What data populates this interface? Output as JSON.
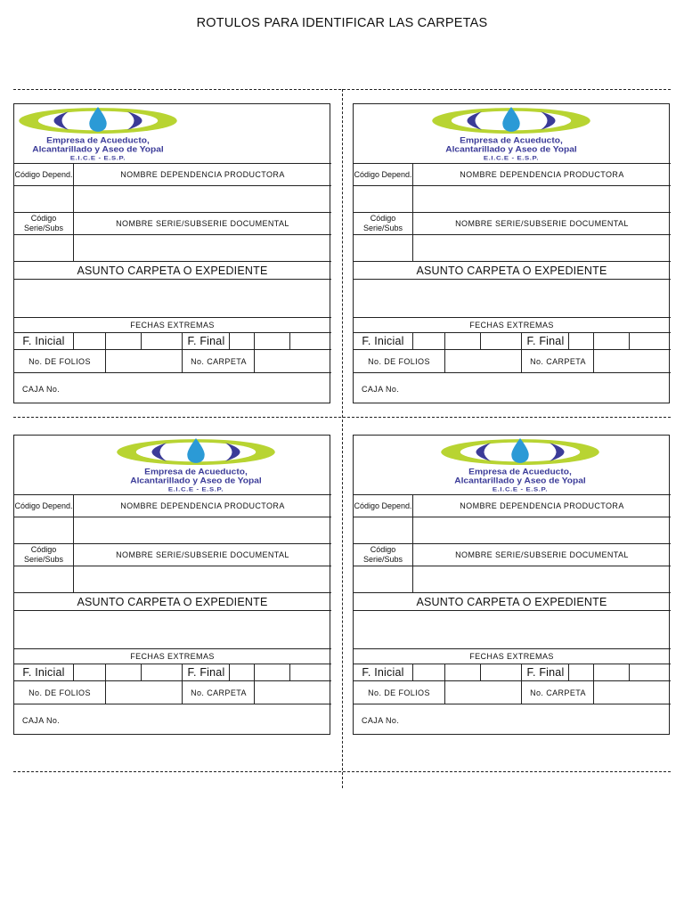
{
  "document": {
    "title": "ROTULOS PARA IDENTIFICAR LAS CARPETAS"
  },
  "logo": {
    "line1": "Empresa de Acueducto,",
    "line2": "Alcantarillado y Aseo de Yopal",
    "line3": "E.I.C.E - E.S.P.",
    "colors": {
      "green": "#b8d432",
      "navy": "#3b3b98",
      "drop": "#2b9ad6"
    }
  },
  "label": {
    "codigo_depend": "Código Depend.",
    "nombre_dependencia": "NOMBRE DEPENDENCIA PRODUCTORA",
    "codigo_serie": "Código Serie/Subs",
    "nombre_serie": "NOMBRE SERIE/SUBSERIE DOCUMENTAL",
    "asunto": "ASUNTO CARPETA O EXPEDIENTE",
    "fechas_extremas": "FECHAS EXTREMAS",
    "f_inicial": "F. Inicial",
    "f_final": "F. Final",
    "no_folios": "No. DE FOLIOS",
    "no_carpeta": "No. CARPETA",
    "caja_no": "CAJA No."
  },
  "labels_count": 4
}
